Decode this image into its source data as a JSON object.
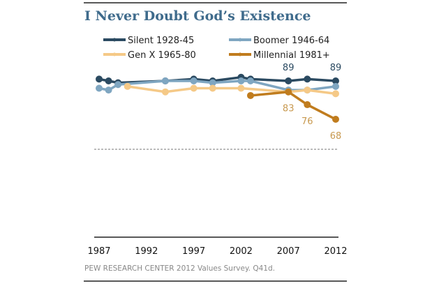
{
  "chart_data": {
    "type": "line",
    "title": "I Never Doubt God’s Existence",
    "xlabel": "",
    "ylabel": "",
    "xlim": [
      1987,
      2012
    ],
    "ylim": [
      50,
      95
    ],
    "xticks": [
      "1987",
      "1992",
      "1997",
      "2002",
      "2007",
      "2012"
    ],
    "grid": false,
    "legend": "top",
    "series": [
      {
        "name": "Silent 1928-45",
        "color": "#2b4a61",
        "x": [
          1987,
          1988,
          1989,
          1994,
          1997,
          1999,
          2002,
          2003,
          2007,
          2009,
          2012
        ],
        "values": [
          90,
          89,
          88,
          89,
          90,
          89,
          91,
          90,
          89,
          90,
          89
        ]
      },
      {
        "name": "Boomer 1946-64",
        "color": "#7fa6c1",
        "x": [
          1987,
          1988,
          1989,
          1994,
          1997,
          1999,
          2002,
          2003,
          2007,
          2009,
          2012
        ],
        "values": [
          85,
          84,
          87,
          89,
          89,
          88,
          89,
          89,
          84,
          84,
          86
        ]
      },
      {
        "name": "Gen X 1965-80",
        "color": "#f5c987",
        "x": [
          1990,
          1994,
          1997,
          1999,
          2002,
          2007,
          2009,
          2012
        ],
        "values": [
          86,
          83,
          85,
          85,
          85,
          83,
          84,
          82
        ]
      },
      {
        "name": "Millennial 1981+",
        "color": "#c07c1e",
        "x": [
          2003,
          2007,
          2009,
          2012
        ],
        "values": [
          81,
          83,
          76,
          68
        ]
      }
    ],
    "data_labels": [
      {
        "series": "Silent 1928-45",
        "x": 2007,
        "text": "89",
        "color": "#2b4a61"
      },
      {
        "series": "Silent 1928-45",
        "x": 2012,
        "text": "89",
        "color": "#2b4a61"
      },
      {
        "series": "Millennial 1981+",
        "x": 2007,
        "text": "83",
        "color": "#c8994f"
      },
      {
        "series": "Millennial 1981+",
        "x": 2009,
        "text": "76",
        "color": "#c8994f"
      },
      {
        "series": "Millennial 1981+",
        "x": 2012,
        "text": "68",
        "color": "#c8994f"
      }
    ],
    "source": "PEW RESEARCH  CENTER 2012 Values Survey.  Q41d."
  }
}
